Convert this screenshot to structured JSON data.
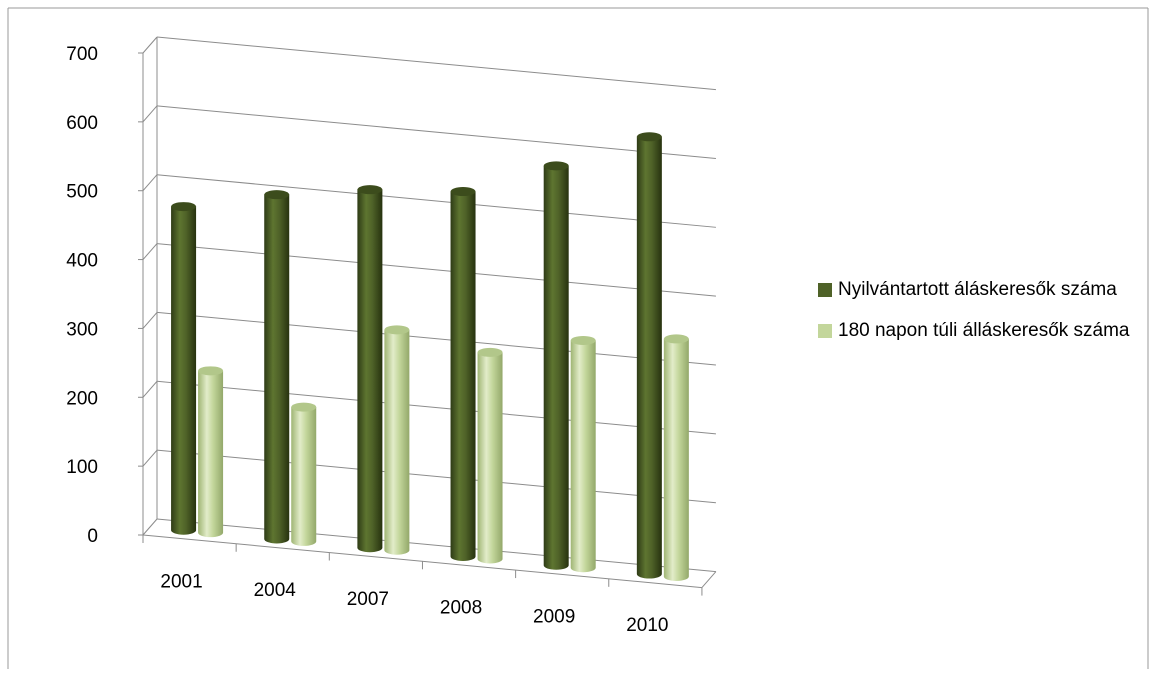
{
  "chart_data": {
    "type": "bar",
    "categories": [
      "2001",
      "2004",
      "2007",
      "2008",
      "2009",
      "2010"
    ],
    "series": [
      {
        "name": "Nyilvántartott áláskeresők száma",
        "values": [
          470,
          500,
          520,
          530,
          580,
          635
        ],
        "color": "#4f6228"
      },
      {
        "name": "180 napon túli álláskeresők száma",
        "values": [
          235,
          195,
          320,
          300,
          330,
          345
        ],
        "color": "#c3d69b"
      }
    ],
    "y_ticks": [
      "0",
      "100",
      "200",
      "300",
      "400",
      "500",
      "600",
      "700"
    ],
    "ylim": [
      0,
      700
    ],
    "grid": true,
    "legend_position": "right",
    "style": "3d-cylinder"
  }
}
